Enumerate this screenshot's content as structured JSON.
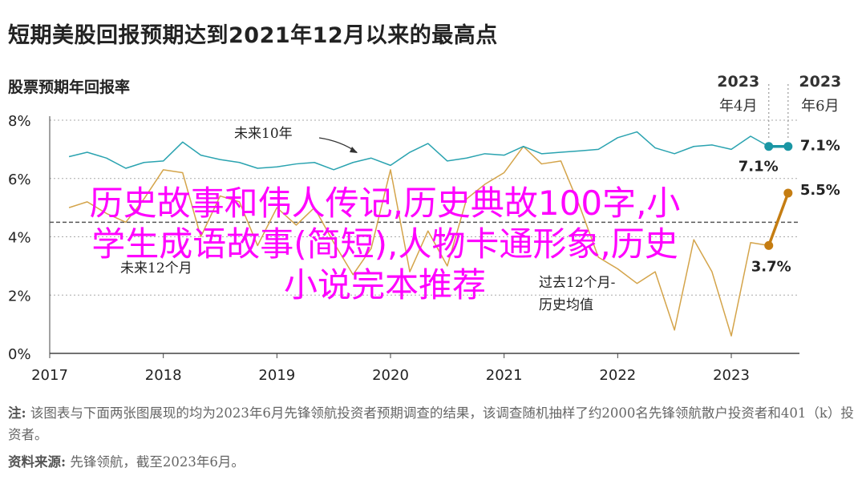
{
  "title": "短期美股回报预期达到2021年12月以来的最高点",
  "subtitle": "股票预期年回报率",
  "overlay_text": [
    "历史故事和伟人传记,历史典故100字,小",
    "学生成语故事(简短),人物卡通形象,历史",
    "小说完本推荐"
  ],
  "footnote": {
    "note_label": "注:",
    "note_text": "该图表与下面两张图展现的均为2023年6月先锋领航投资者预期调查的结果，该调查随机抽样了约2000名先锋领航散户投资者和401（k）投资者。",
    "source_label": "资料来源:",
    "source_text": "先锋领航，截至2023年6月。"
  },
  "colors": {
    "future10": "#2aa3b0",
    "future10_end": "#1a96a4",
    "future12": "#d4a44a",
    "future12_end": "#c57d12",
    "axis": "#444444",
    "grid": "#aaaaaa"
  },
  "chart_data": {
    "type": "line",
    "xlim": [
      2017.0,
      2023.6
    ],
    "ylim": [
      0,
      8
    ],
    "x_ticks": [
      "2017",
      "2018",
      "2019",
      "2020",
      "2021",
      "2022",
      "2023"
    ],
    "y_ticks": [
      "0%",
      "2%",
      "4%",
      "6%",
      "8%"
    ],
    "series": [
      {
        "name": "未来10年",
        "x": [
          2017.17,
          2017.33,
          2017.5,
          2017.67,
          2017.83,
          2018.0,
          2018.17,
          2018.33,
          2018.5,
          2018.67,
          2018.83,
          2019.0,
          2019.17,
          2019.33,
          2019.5,
          2019.67,
          2019.83,
          2020.0,
          2020.17,
          2020.33,
          2020.5,
          2020.67,
          2020.83,
          2021.0,
          2021.17,
          2021.33,
          2021.5,
          2021.67,
          2021.83,
          2022.0,
          2022.17,
          2022.33,
          2022.5,
          2022.67,
          2022.83,
          2023.0,
          2023.17,
          2023.33,
          2023.5
        ],
        "values": [
          6.75,
          6.9,
          6.7,
          6.35,
          6.55,
          6.6,
          7.25,
          6.8,
          6.65,
          6.55,
          6.35,
          6.4,
          6.5,
          6.55,
          6.3,
          6.55,
          6.7,
          6.45,
          6.9,
          7.2,
          6.6,
          6.7,
          6.85,
          6.8,
          7.1,
          6.85,
          6.9,
          6.95,
          7.0,
          7.4,
          7.6,
          7.05,
          6.85,
          7.1,
          7.15,
          7.0,
          7.45,
          7.1,
          7.1
        ]
      },
      {
        "name": "未来12个月",
        "x": [
          2017.17,
          2017.33,
          2017.5,
          2017.67,
          2017.83,
          2018.0,
          2018.17,
          2018.33,
          2018.5,
          2018.67,
          2018.83,
          2019.0,
          2019.17,
          2019.33,
          2019.5,
          2019.67,
          2019.83,
          2020.0,
          2020.17,
          2020.33,
          2020.5,
          2020.67,
          2020.83,
          2021.0,
          2021.17,
          2021.33,
          2021.5,
          2021.67,
          2021.83,
          2022.0,
          2022.17,
          2022.33,
          2022.5,
          2022.67,
          2022.83,
          2023.0,
          2023.17,
          2023.33,
          2023.5
        ],
        "values": [
          5.0,
          5.2,
          4.8,
          4.5,
          5.3,
          6.3,
          6.2,
          4.0,
          5.4,
          5.2,
          3.7,
          5.0,
          4.4,
          5.0,
          3.8,
          2.7,
          3.6,
          6.3,
          2.8,
          4.2,
          3.0,
          5.3,
          5.8,
          6.2,
          7.1,
          6.5,
          6.6,
          5.0,
          3.3,
          2.9,
          2.4,
          2.8,
          0.8,
          3.9,
          2.8,
          0.6,
          3.8,
          3.7,
          5.5
        ]
      }
    ],
    "baseline": {
      "value": 4.5,
      "style": "dashed"
    },
    "annotations": {
      "future10_label": "未来10年",
      "future12_label": "未来12个月",
      "avg_label_line1": "过去12个月-",
      "avg_label_line2": "历史均值",
      "apr_line1": "2023",
      "apr_line2": "年4月",
      "jun_line1": "2023",
      "jun_line2": "年6月",
      "val_10y_apr": "7.1%",
      "val_10y_jun": "7.1%",
      "val_12m_apr": "3.7%",
      "val_12m_jun": "5.5%"
    },
    "grid": true
  }
}
